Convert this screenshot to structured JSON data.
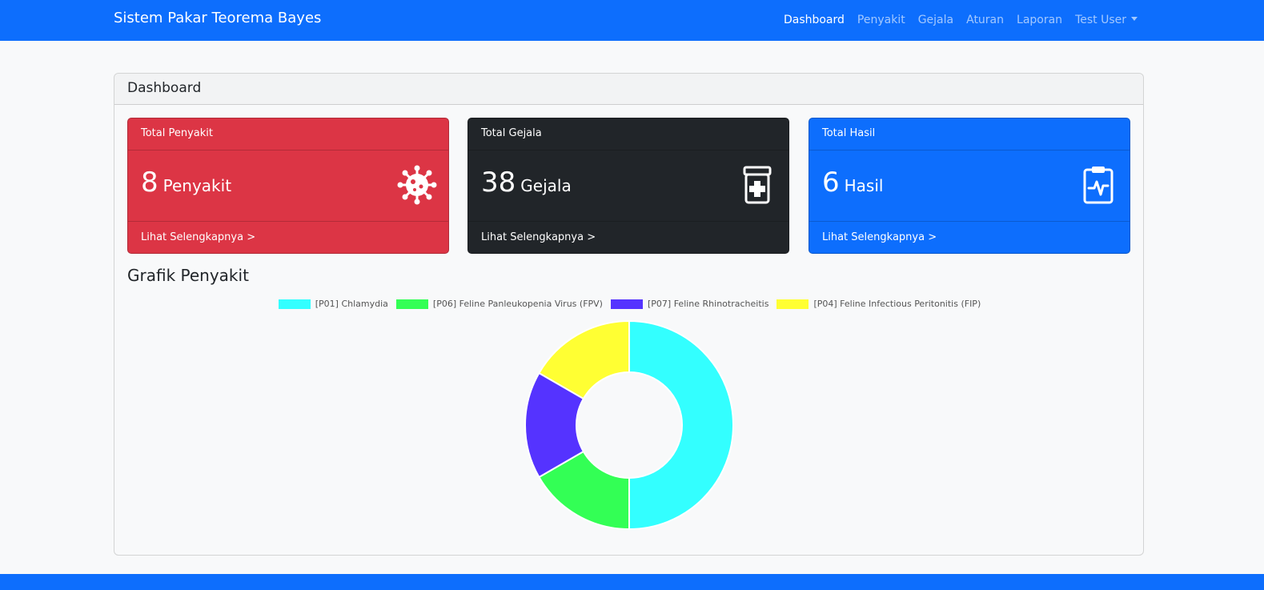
{
  "navbar": {
    "brand": "Sistem Pakar Teorema Bayes",
    "items": [
      {
        "label": "Dashboard",
        "active": true
      },
      {
        "label": "Penyakit"
      },
      {
        "label": "Gejala"
      },
      {
        "label": "Aturan"
      },
      {
        "label": "Laporan"
      },
      {
        "label": "Test User"
      }
    ]
  },
  "page": {
    "title": "Dashboard"
  },
  "stats": [
    {
      "header": "Total Penyakit",
      "value": "8",
      "unit": "Penyakit",
      "link": "Lihat Selengkapnya >",
      "color": "#dc3545",
      "icon": "virus-icon"
    },
    {
      "header": "Total Gejala",
      "value": "38",
      "unit": "Gejala",
      "link": "Lihat Selengkapnya >",
      "color": "#212529",
      "icon": "medicine-bottle-icon"
    },
    {
      "header": "Total Hasil",
      "value": "6",
      "unit": "Hasil",
      "link": "Lihat Selengkapnya >",
      "color": "#0d6efd",
      "icon": "clipboard-pulse-icon"
    }
  ],
  "chart_title": "Grafik Penyakit",
  "chart_data": {
    "type": "pie",
    "categories": [
      "[P01] Chlamydia",
      "[P06] Feline Panleukopenia Virus (FPV)",
      "[P07] Feline Rhinotracheitis",
      "[P04] Feline Infectious Peritonitis (FIP)"
    ],
    "values": [
      3,
      1,
      1,
      1
    ],
    "colors": [
      "#33ffff",
      "#33ff55",
      "#5533ff",
      "#ffff33"
    ],
    "legend": "top",
    "donut": true
  }
}
